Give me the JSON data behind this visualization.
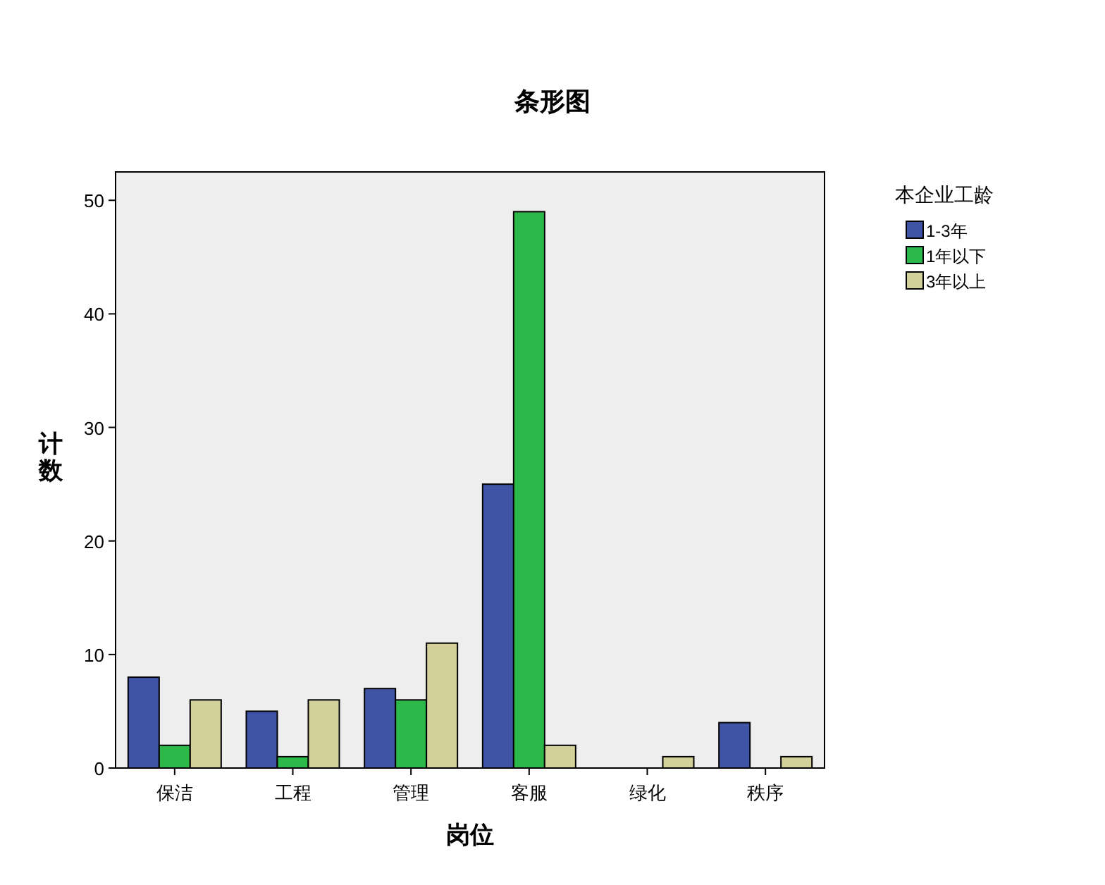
{
  "chart_data": {
    "type": "bar",
    "title": "条形图",
    "xlabel": "岗位",
    "ylabel": "计数",
    "legend_title": "本企业工龄",
    "categories": [
      "保洁",
      "工程",
      "管理",
      "客服",
      "绿化",
      "秩序"
    ],
    "series": [
      {
        "name": "1-3年",
        "color": "#3f54a4",
        "values": [
          8,
          5,
          7,
          25,
          null,
          4
        ]
      },
      {
        "name": "1年以下",
        "color": "#2db84a",
        "values": [
          2,
          1,
          6,
          49,
          null,
          null
        ]
      },
      {
        "name": "3年以上",
        "color": "#d4d09a",
        "values": [
          6,
          6,
          11,
          2,
          1,
          1
        ]
      }
    ],
    "ylim": [
      0,
      52.5
    ],
    "yticks": [
      0,
      10,
      20,
      30,
      40,
      50
    ],
    "legend": "right"
  }
}
